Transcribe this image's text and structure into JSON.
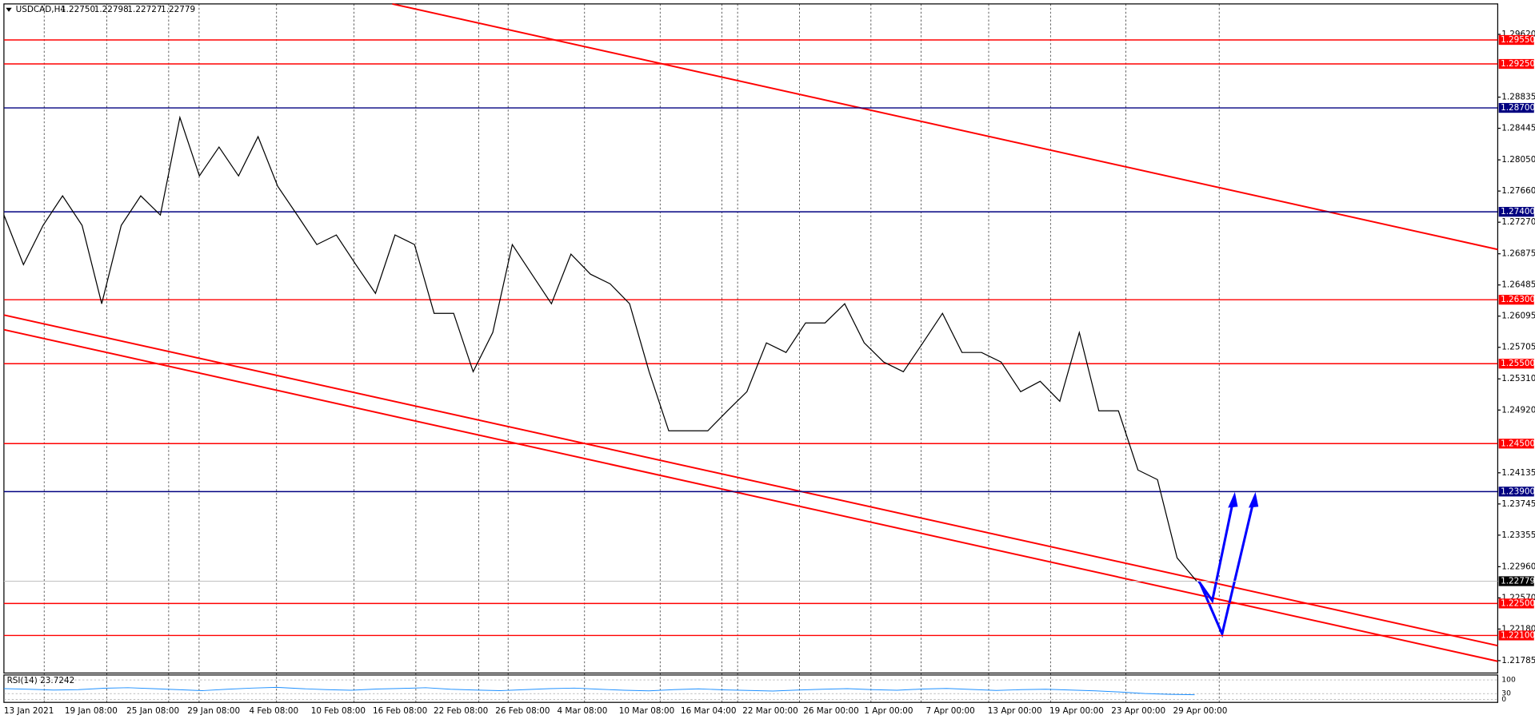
{
  "chart_data": {
    "type": "line",
    "title": "USDCAD,H4",
    "ohlc": [
      {
        "value": 1.2275,
        "label": "1.22750"
      },
      {
        "value": 1.22798,
        "label": "1.22798"
      },
      {
        "value": 1.22727,
        "label": "1.22727"
      },
      {
        "value": 1.22779,
        "label": "1.22779"
      }
    ],
    "ylim": [
      1.2163,
      1.3005
    ],
    "yticks": [
      {
        "value": 1.2962,
        "label": "1.29620"
      },
      {
        "value": 1.28835,
        "label": "1.28835"
      },
      {
        "value": 1.28445,
        "label": "1.28445"
      },
      {
        "value": 1.2805,
        "label": "1.28050"
      },
      {
        "value": 1.2766,
        "label": "1.27660"
      },
      {
        "value": 1.2727,
        "label": "1.27270"
      },
      {
        "value": 1.26875,
        "label": "1.26875"
      },
      {
        "value": 1.26485,
        "label": "1.26485"
      },
      {
        "value": 1.26095,
        "label": "1.26095"
      },
      {
        "value": 1.25705,
        "label": "1.25705"
      },
      {
        "value": 1.2531,
        "label": "1.25310"
      },
      {
        "value": 1.2492,
        "label": "1.24920"
      },
      {
        "value": 1.24135,
        "label": "1.24135"
      },
      {
        "value": 1.23745,
        "label": "1.23745"
      },
      {
        "value": 1.23355,
        "label": "1.23355"
      },
      {
        "value": 1.2296,
        "label": "1.22960"
      },
      {
        "value": 1.2257,
        "label": "1.22570"
      },
      {
        "value": 1.2218,
        "label": "1.22180"
      },
      {
        "value": 1.21785,
        "label": "1.21785"
      }
    ],
    "levels": [
      {
        "value": 1.2955,
        "label": "1.29550",
        "color": "#ff0000"
      },
      {
        "value": 1.2925,
        "label": "1.29250",
        "color": "#ff0000"
      },
      {
        "value": 1.287,
        "label": "1.28700",
        "color": "#000080"
      },
      {
        "value": 1.274,
        "label": "1.27400",
        "color": "#000080"
      },
      {
        "value": 1.263,
        "label": "1.26300",
        "color": "#ff0000"
      },
      {
        "value": 1.255,
        "label": "1.25500",
        "color": "#ff0000"
      },
      {
        "value": 1.245,
        "label": "1.24500",
        "color": "#ff0000"
      },
      {
        "value": 1.239,
        "label": "1.23900",
        "color": "#000080"
      },
      {
        "value": 1.225,
        "label": "1.22500",
        "color": "#ff0000"
      },
      {
        "value": 1.221,
        "label": "1.22100",
        "color": "#ff0000"
      }
    ],
    "current": {
      "value": 1.22779,
      "label": "1.22779"
    },
    "x_labels": [
      "13 Jan 2021",
      "19 Jan 08:00",
      "25 Jan 08:00",
      "29 Jan 08:00",
      "4 Feb 08:00",
      "10 Feb 08:00",
      "16 Feb 08:00",
      "22 Feb 08:00",
      "26 Feb 08:00",
      "4 Mar 08:00",
      "10 Mar 08:00",
      "16 Mar 04:00",
      "22 Mar 00:00",
      "26 Mar 00:00",
      "1 Apr 00:00",
      "7 Apr 00:00",
      "13 Apr 00:00",
      "19 Apr 00:00",
      "23 Apr 00:00",
      "29 Apr 00:00"
    ],
    "series": [
      {
        "name": "USDCAD",
        "color": "#000000",
        "values": [
          1.2736,
          1.2674,
          1.2723,
          1.276,
          1.2723,
          1.2625,
          1.2723,
          1.276,
          1.2736,
          1.2858,
          1.2785,
          1.2821,
          1.2785,
          1.2834,
          1.2772,
          1.2736,
          1.2699,
          1.2711,
          1.2674,
          1.2638,
          1.2711,
          1.2699,
          1.2613,
          1.2613,
          1.254,
          1.2589,
          1.2699,
          1.2662,
          1.2625,
          1.2687,
          1.2662,
          1.265,
          1.2625,
          1.254,
          1.2466,
          1.2466,
          1.2466,
          1.2491,
          1.2515,
          1.2576,
          1.2564,
          1.2601,
          1.2601,
          1.2625,
          1.2576,
          1.2552,
          1.254,
          1.2576,
          1.2613,
          1.2564,
          1.2564,
          1.2552,
          1.2515,
          1.2528,
          1.2503,
          1.2589,
          1.2491,
          1.2491,
          1.2417,
          1.2405,
          1.2307,
          1.2278
        ]
      }
    ],
    "rsi": {
      "label": "RSI(14) 23.7242",
      "color": "#1e90ff",
      "ylim": [
        0,
        100
      ],
      "yticks": [
        100,
        30,
        0
      ],
      "values": [
        55,
        52,
        48,
        50,
        57,
        60,
        55,
        50,
        45,
        52,
        58,
        62,
        55,
        50,
        47,
        53,
        56,
        60,
        52,
        48,
        45,
        50,
        55,
        58,
        52,
        47,
        44,
        50,
        54,
        49,
        46,
        43,
        48,
        52,
        55,
        50,
        47,
        53,
        56,
        51,
        46,
        50,
        52,
        48,
        44,
        38,
        30,
        26,
        24
      ]
    }
  }
}
